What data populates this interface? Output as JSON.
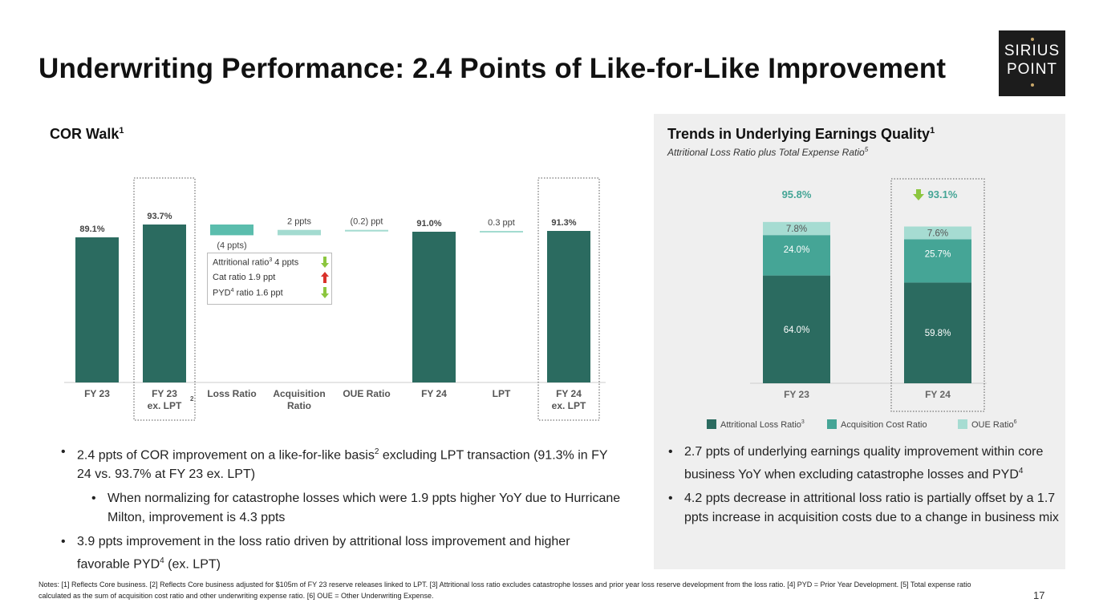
{
  "title": "Underwriting Performance: 2.4 Points of Like-for-Like Improvement",
  "logo": {
    "line1": "SIRIUS",
    "line2": "POINT"
  },
  "left_section": {
    "title": "COR Walk",
    "sup": "1"
  },
  "right_section": {
    "title": "Trends in Underlying Earnings Quality",
    "sup": "1",
    "subtitle": "Attritional Loss Ratio plus Total Expense Ratio",
    "subtitle_sup": "5"
  },
  "colors": {
    "dark": "#2b6b60",
    "mid": "#45a596",
    "light": "#a6dcd2",
    "walk": "#5bbdad",
    "walk_light": "#a3dbd0",
    "down": "#8cc63f",
    "up": "#d9322b"
  },
  "annotation": {
    "lines": [
      {
        "text": "Attritional ratio",
        "sup": "3",
        "suffix": " 4 ppts",
        "arrow": "down"
      },
      {
        "text": "Cat ratio 1.9 ppt",
        "sup": "",
        "suffix": "",
        "arrow": "up"
      },
      {
        "text": "PYD",
        "sup": "4",
        "suffix": " ratio 1.6 ppt",
        "arrow": "down"
      }
    ]
  },
  "chart_data": [
    {
      "type": "bar",
      "title": "COR Walk",
      "subtype": "waterfall",
      "categories": [
        "FY 23",
        "FY 23 ex. LPT",
        "Loss Ratio",
        "Acquisition Ratio",
        "OUE Ratio",
        "FY 24",
        "LPT",
        "FY 24 ex. LPT"
      ],
      "category_sup": [
        "",
        "2",
        "",
        "",
        "",
        "",
        "",
        ""
      ],
      "values": [
        89.1,
        93.7,
        -4.0,
        2.0,
        -0.2,
        91.0,
        0.3,
        91.3
      ],
      "labels": [
        "89.1%",
        "93.7%",
        "(4 ppts)",
        "2 ppts",
        "(0.2) ppt",
        "91.0%",
        "0.3 ppt",
        "91.3%"
      ],
      "kind": [
        "total",
        "total",
        "delta",
        "delta",
        "delta",
        "total",
        "delta",
        "total"
      ],
      "highlighted": [
        "FY 23 ex. LPT",
        "FY 24 ex. LPT"
      ]
    },
    {
      "type": "bar",
      "subtype": "stacked",
      "title": "Attritional Loss Ratio plus Total Expense Ratio",
      "categories": [
        "FY 23",
        "FY 24"
      ],
      "series": [
        {
          "name": "Attritional Loss Ratio",
          "sup": "3",
          "values": [
            64.0,
            59.8
          ],
          "labels": [
            "64.0%",
            "59.8%"
          ]
        },
        {
          "name": "Acquisition Cost Ratio",
          "sup": "",
          "values": [
            24.0,
            25.7
          ],
          "labels": [
            "24.0%",
            "25.7%"
          ]
        },
        {
          "name": "OUE Ratio",
          "sup": "6",
          "values": [
            7.8,
            7.6
          ],
          "labels": [
            "7.8%",
            "7.6%"
          ]
        }
      ],
      "totals": [
        "95.8%",
        "93.1%"
      ],
      "total_trend": [
        "",
        "down"
      ],
      "highlighted": [
        "FY 24"
      ]
    }
  ],
  "bullets_left": [
    {
      "level": 1,
      "parts": [
        {
          "t": "2.4 ppts of COR improvement on a like-for-like basis"
        },
        {
          "t": "2",
          "sup": true
        },
        {
          "t": " excluding LPT transaction (91.3% in FY 24 vs. 93.7% at FY 23 ex. LPT)"
        }
      ]
    },
    {
      "level": 2,
      "parts": [
        {
          "t": "When normalizing for catastrophe losses which were 1.9 ppts higher YoY due to Hurricane Milton, improvement is 4.3 ppts"
        }
      ]
    },
    {
      "level": 1,
      "parts": [
        {
          "t": "3.9 ppts improvement in the loss ratio driven by attritional loss improvement and higher favorable PYD"
        },
        {
          "t": "4",
          "sup": true
        },
        {
          "t": " (ex. LPT)"
        }
      ]
    }
  ],
  "bullets_right": [
    {
      "level": 1,
      "parts": [
        {
          "t": "2.7 ppts of underlying earnings quality improvement within core business YoY when excluding catastrophe losses and PYD"
        },
        {
          "t": "4",
          "sup": true
        }
      ]
    },
    {
      "level": 1,
      "parts": [
        {
          "t": "4.2 ppts decrease in attritional loss ratio is partially offset by a 1.7 ppts increase in acquisition costs due to a change in business mix"
        }
      ]
    }
  ],
  "notes": "Notes:  [1] Reflects Core business. [2] Reflects Core business adjusted for $105m of FY 23 reserve releases linked to LPT. [3] Attritional loss ratio excludes catastrophe losses and prior year loss reserve development from the loss ratio. [4] PYD = Prior Year Development. [5] Total expense ratio calculated as the sum of acquisition cost ratio and other underwriting expense ratio. [6] OUE = Other Underwriting Expense.",
  "page_number": "17"
}
